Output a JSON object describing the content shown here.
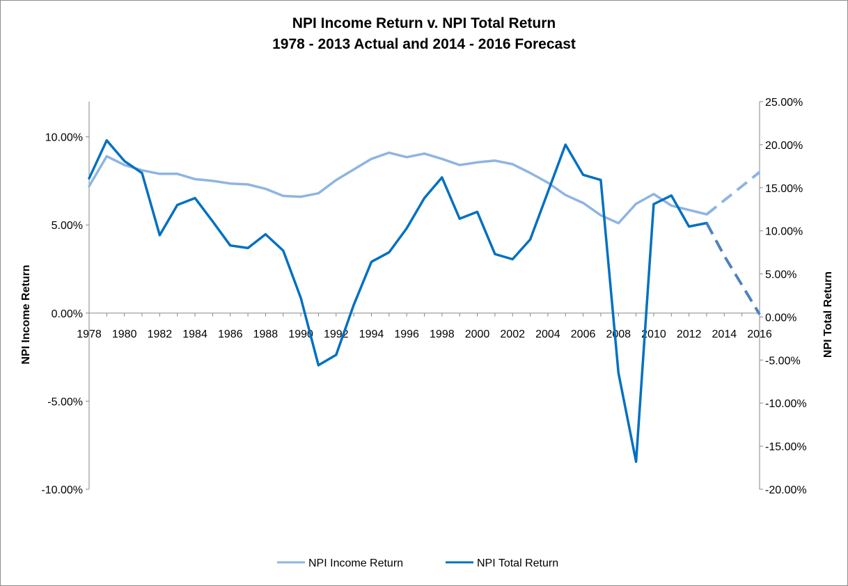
{
  "chart_data": {
    "type": "line",
    "title": "NPI Income Return v. NPI Total Return",
    "subtitle": "1978 - 2013 Actual and 2014 - 2016 Forecast",
    "y_left_label": "NPI Income Return",
    "y_right_label": "NPI Total Return",
    "y_left_lim": [
      -0.1,
      0.12
    ],
    "y_right_lim": [
      -0.2,
      0.25
    ],
    "y_left_ticks": [
      "10.00%",
      "5.00%",
      "0.00%",
      "-5.00%",
      "-10.00%"
    ],
    "y_left_tick_values": [
      0.1,
      0.05,
      0.0,
      -0.05,
      -0.1
    ],
    "y_right_ticks": [
      "25.00%",
      "20.00%",
      "15.00%",
      "10.00%",
      "5.00%",
      "0.00%",
      "-5.00%",
      "-10.00%",
      "-15.00%",
      "-20.00%"
    ],
    "y_right_tick_values": [
      0.25,
      0.2,
      0.15,
      0.1,
      0.05,
      0.0,
      -0.05,
      -0.1,
      -0.15,
      -0.2
    ],
    "x_ticks": [
      "1978",
      "1980",
      "1982",
      "1984",
      "1986",
      "1988",
      "1990",
      "1992",
      "1994",
      "1996",
      "1998",
      "2000",
      "2002",
      "2004",
      "2006",
      "2008",
      "2010",
      "2012",
      "2014",
      "2016"
    ],
    "x_range": [
      1978,
      2016
    ],
    "actual_end_year": 2013,
    "legend_position": "bottom",
    "grid": false,
    "series": [
      {
        "name": "NPI Income Return",
        "axis": "left",
        "color": "#8eb4e3",
        "x": [
          1978,
          1979,
          1980,
          1981,
          1982,
          1983,
          1984,
          1985,
          1986,
          1987,
          1988,
          1989,
          1990,
          1991,
          1992,
          1993,
          1994,
          1995,
          1996,
          1997,
          1998,
          1999,
          2000,
          2001,
          2002,
          2003,
          2004,
          2005,
          2006,
          2007,
          2008,
          2009,
          2010,
          2011,
          2012,
          2013,
          2014,
          2015,
          2016
        ],
        "values": [
          0.072,
          0.089,
          0.084,
          0.081,
          0.079,
          0.079,
          0.076,
          0.075,
          0.0735,
          0.073,
          0.0705,
          0.0665,
          0.066,
          0.068,
          0.0755,
          0.0815,
          0.0875,
          0.091,
          0.0885,
          0.0905,
          0.0875,
          0.084,
          0.0855,
          0.0865,
          0.0845,
          0.0795,
          0.074,
          0.067,
          0.0625,
          0.0555,
          0.051,
          0.062,
          0.0675,
          0.061,
          0.0585,
          0.056,
          0.064,
          0.072,
          0.08
        ]
      },
      {
        "name": "NPI Total Return",
        "axis": "right",
        "color": "#0070c0",
        "x": [
          1978,
          1979,
          1980,
          1981,
          1982,
          1983,
          1984,
          1985,
          1986,
          1987,
          1988,
          1989,
          1990,
          1991,
          1992,
          1993,
          1994,
          1995,
          1996,
          1997,
          1998,
          1999,
          2000,
          2001,
          2002,
          2003,
          2004,
          2005,
          2006,
          2007,
          2008,
          2009,
          2010,
          2011,
          2012,
          2013,
          2014,
          2015,
          2016
        ],
        "values": [
          0.161,
          0.205,
          0.181,
          0.167,
          0.095,
          0.13,
          0.138,
          0.111,
          0.083,
          0.08,
          0.096,
          0.077,
          0.022,
          -0.056,
          -0.044,
          0.014,
          0.064,
          0.075,
          0.103,
          0.138,
          0.162,
          0.114,
          0.122,
          0.073,
          0.067,
          0.09,
          0.145,
          0.2,
          0.165,
          0.159,
          -0.065,
          -0.168,
          0.131,
          0.141,
          0.105,
          0.109,
          0.071,
          0.037,
          0.003
        ]
      }
    ]
  }
}
